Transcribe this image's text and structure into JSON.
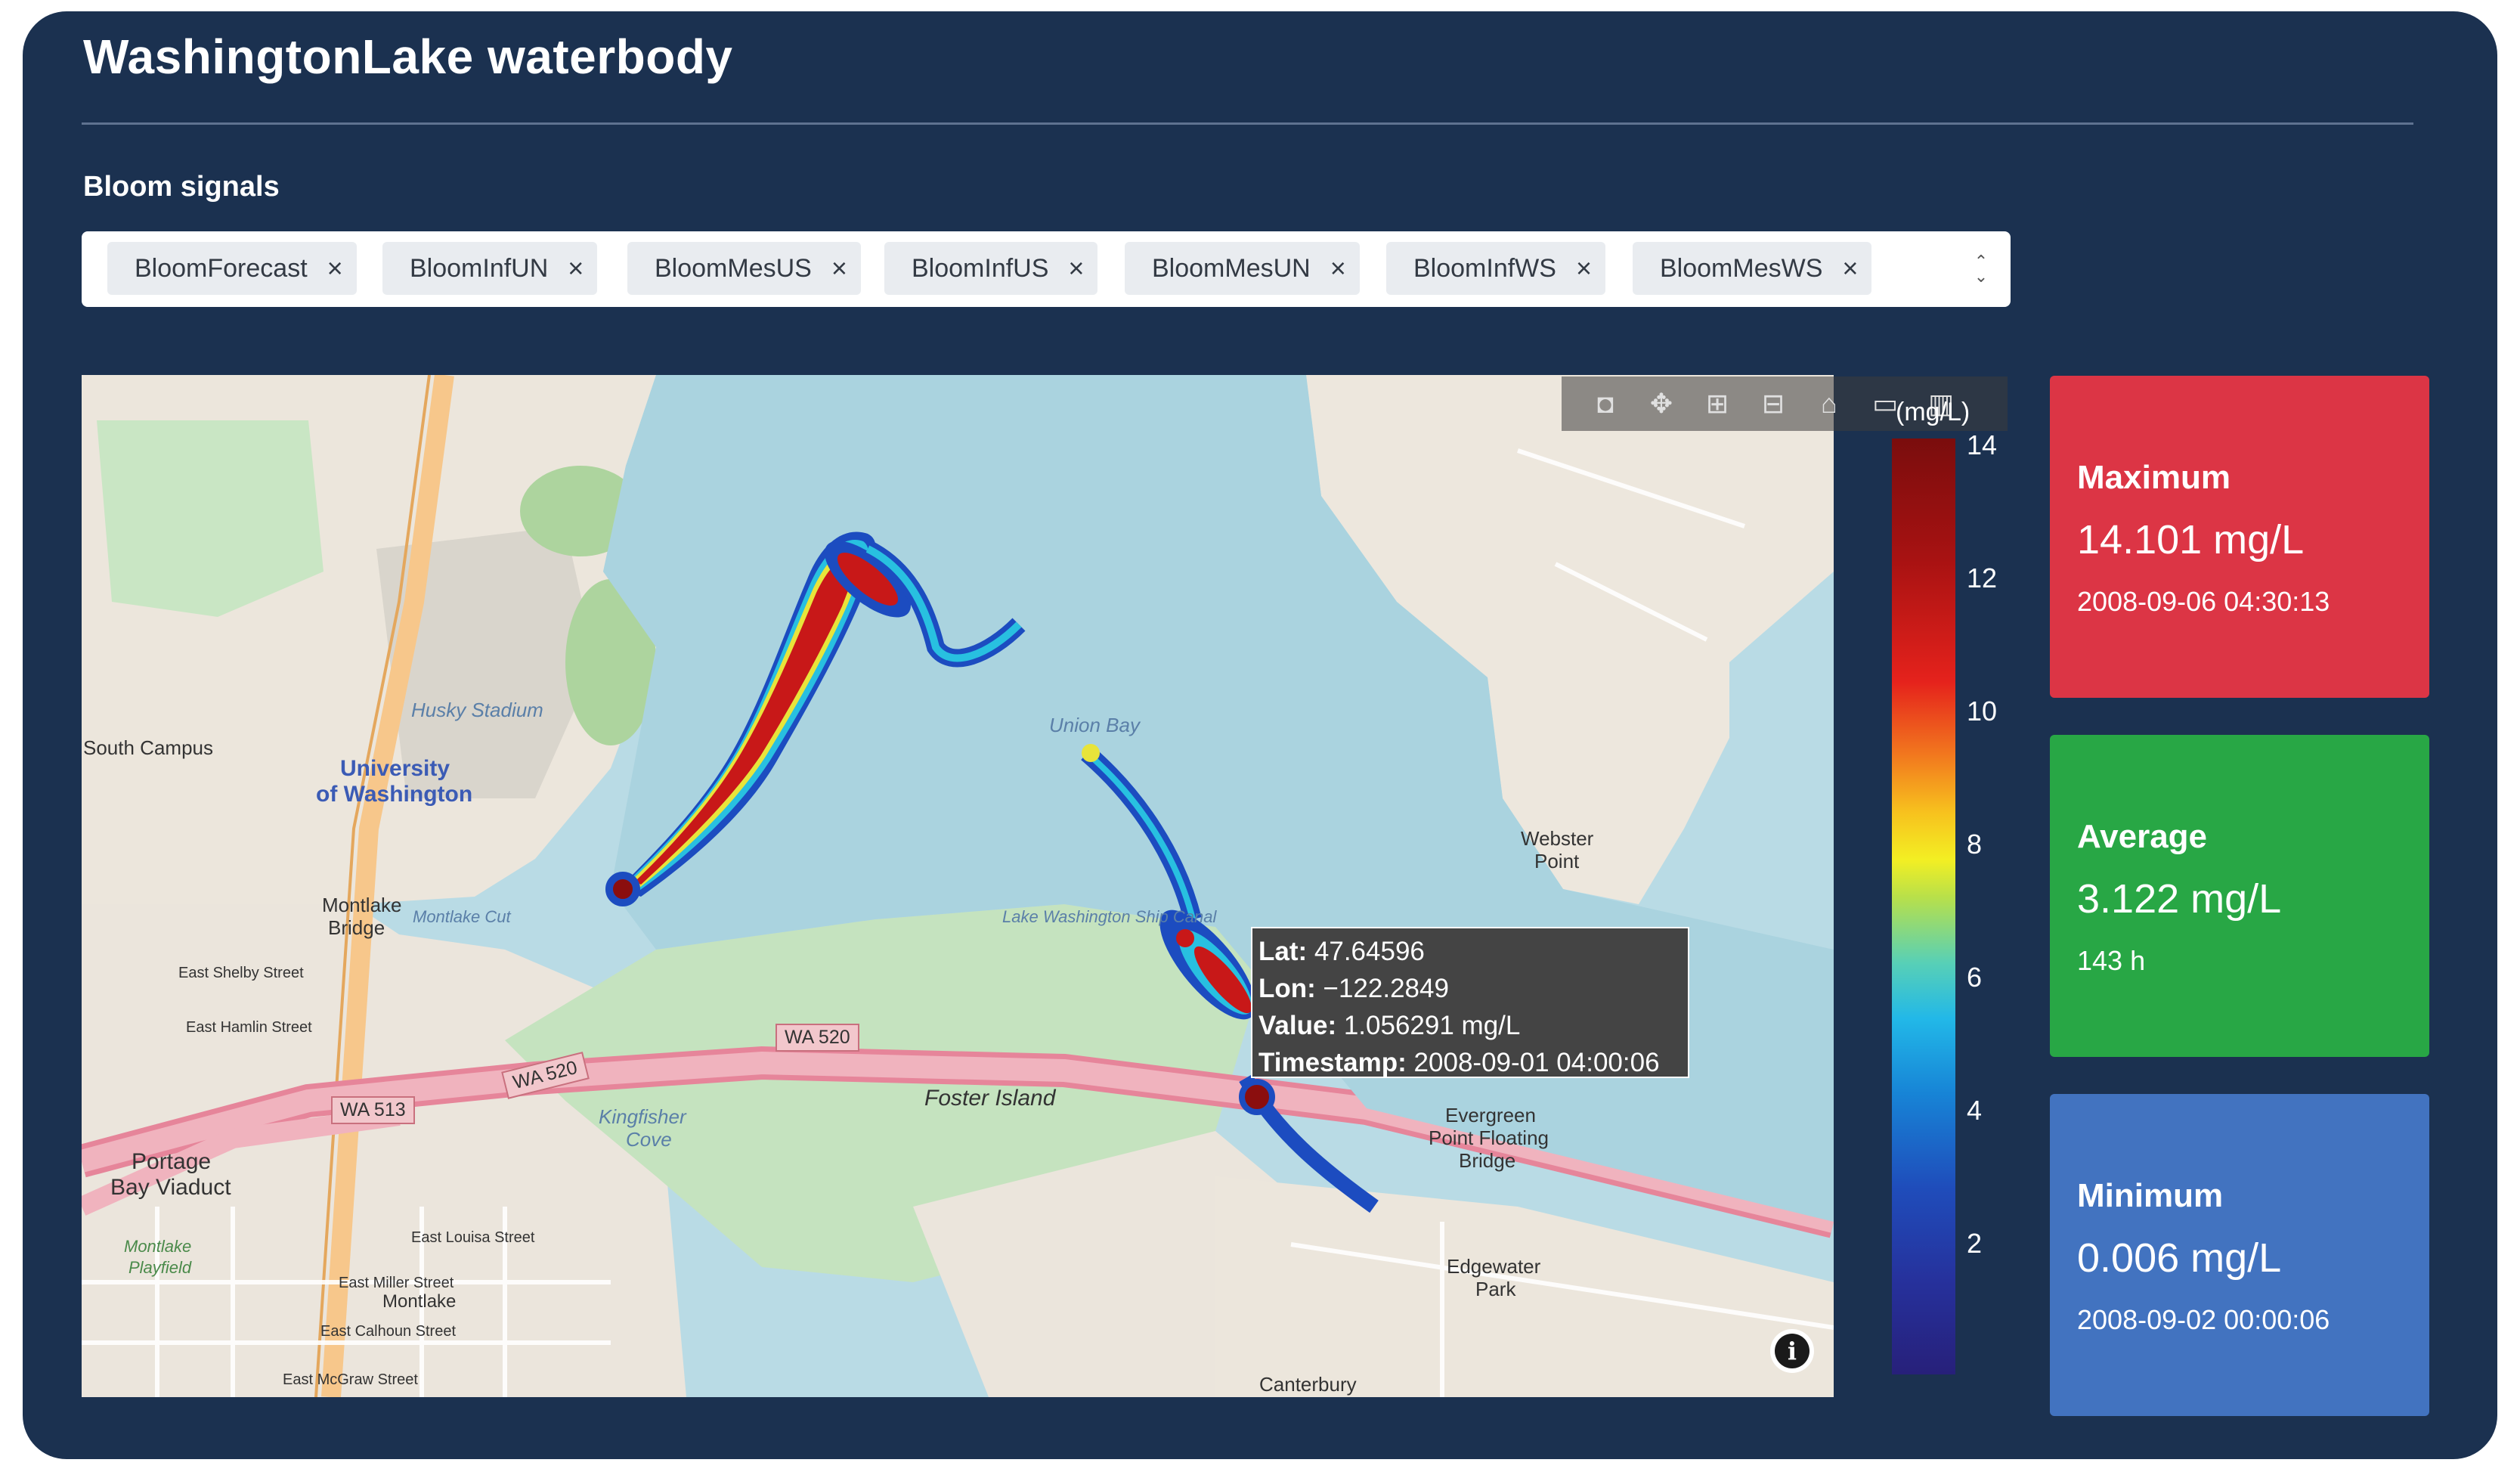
{
  "page": {
    "title": "WashingtonLake waterbody"
  },
  "filter": {
    "label": "Bloom signals",
    "chips": [
      {
        "label": "BloomForecast"
      },
      {
        "label": "BloomInfUN"
      },
      {
        "label": "BloomMesUS"
      },
      {
        "label": "BloomInfUS"
      },
      {
        "label": "BloomMesUN"
      },
      {
        "label": "BloomInfWS"
      },
      {
        "label": "BloomMesWS"
      }
    ],
    "remove_glyph": "×"
  },
  "map": {
    "labels": {
      "south_campus": "South Campus",
      "university": "University",
      "of_washington": "of Washington",
      "husky_stadium": "Husky Stadium",
      "union_bay": "Union Bay",
      "lake_washington_ship_canal": "Lake Washington Ship Canal",
      "montlake_cut": "Montlake Cut",
      "montlake_bridge_1": "Montlake",
      "montlake_bridge_2": "Bridge",
      "east_shelby": "East Shelby Street",
      "east_hamlin": "East Hamlin Street",
      "foster_island": "Foster Island",
      "kingfisher_1": "Kingfisher",
      "kingfisher_2": "Cove",
      "portage_1": "Portage",
      "portage_2": "Bay Viaduct",
      "montlake_playfield_1": "Montlake",
      "montlake_playfield_2": "Playfield",
      "east_louisa": "East Louisa Street",
      "east_miller": "East Miller Street",
      "montlake": "Montlake",
      "east_calhoun": "East Calhoun Street",
      "east_mcgraw": "East McGraw Street",
      "webster_1": "Webster",
      "webster_2": "Point",
      "evergreen_1": "Evergreen",
      "evergreen_2": "Point Floating",
      "evergreen_3": "Bridge",
      "edgewater_1": "Edgewater",
      "edgewater_2": "Park",
      "canterbury": "Canterbury",
      "wa520_a": "WA 520",
      "wa520_b": "WA 520",
      "wa513": "WA 513"
    },
    "tooltip": {
      "lat_label": "Lat:",
      "lat_value": "47.64596",
      "lon_label": "Lon:",
      "lon_value": "−122.2849",
      "value_label": "Value:",
      "value_value": "1.056291 mg/L",
      "ts_label": "Timestamp:",
      "ts_value": "2008-09-01 04:00:06"
    },
    "info_glyph": "i"
  },
  "colorbar": {
    "unit": "(mg/L)",
    "ticks": [
      "14",
      "12",
      "10",
      "8",
      "6",
      "4",
      "2"
    ]
  },
  "stats": {
    "maximum": {
      "label": "Maximum",
      "value": "14.101 mg/L",
      "sub": "2008-09-06 04:30:13",
      "color": "#dc3545"
    },
    "average": {
      "label": "Average",
      "value": "3.122 mg/L",
      "sub": "143 h",
      "color": "#28a745"
    },
    "minimum": {
      "label": "Minimum",
      "value": "0.006 mg/L",
      "sub": "2008-09-02 00:00:06",
      "color": "#4273c0"
    }
  },
  "modebar": {
    "icons": [
      "camera-icon",
      "pan-icon",
      "zoom-in-icon",
      "zoom-out-icon",
      "home-icon",
      "toggle-icon",
      "plotly-logo-icon"
    ]
  }
}
